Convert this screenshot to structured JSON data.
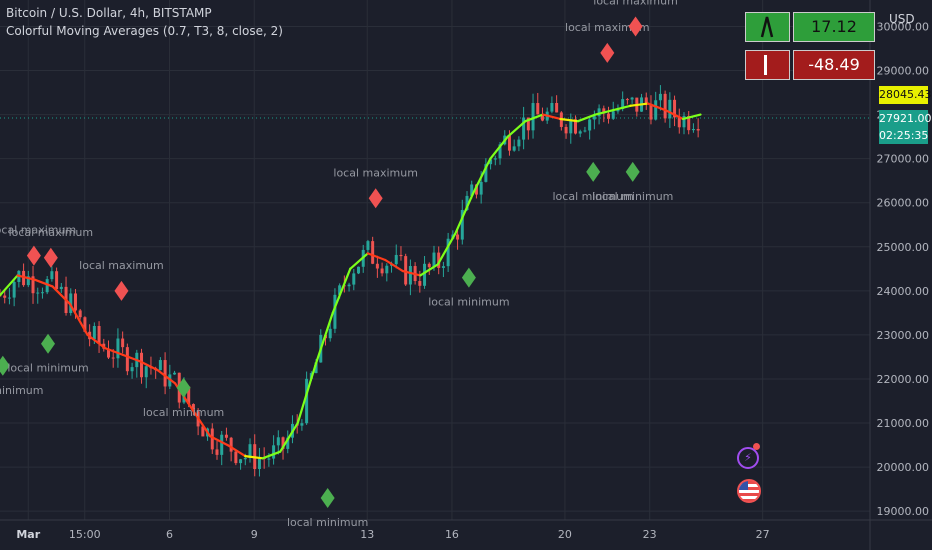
{
  "header": {
    "symbol_line": "Bitcoin / U.S. Dollar, 4h, BITSTAMP",
    "indicator_line": "Colorful Moving Averages (0.7, T3, 8, close, 2)"
  },
  "currency_label": "USD",
  "info_panel": {
    "row1_value": "17.12",
    "row2_value": "-48.49",
    "row1_color": "#2e9e3a",
    "row2_color": "#a31c1c"
  },
  "price_tags": {
    "last_price": "28045.43",
    "close_price": "27921.00",
    "countdown": "02:25:35",
    "last_color": "#e8f000",
    "close_color": "#1a9e8a"
  },
  "colors": {
    "background": "#1c1f2b",
    "candle_up": "#26a69a",
    "candle_down": "#ef5350",
    "ma_up": "#7cff1a",
    "ma_neutral": "#f0f000",
    "ma_down": "#ff3b1a",
    "marker_max": "#f05252",
    "marker_min": "#4caf50"
  },
  "chart_data": {
    "type": "candlestick",
    "y_ticks": [
      "19000.00",
      "20000.00",
      "21000.00",
      "22000.00",
      "23000.00",
      "24000.00",
      "25000.00",
      "26000.00",
      "27000.00",
      "28000.00",
      "29000.00",
      "30000.00"
    ],
    "ylim": [
      18800,
      30600
    ],
    "x_ticks": [
      "Mar",
      "15:00",
      "6",
      "9",
      "13",
      "16",
      "20",
      "23",
      "27"
    ],
    "x_tick_days": [
      1,
      3,
      6,
      9,
      13,
      16,
      20,
      23,
      27
    ],
    "xlim_days": [
      0,
      30.8
    ],
    "moving_average": [
      [
        0,
        23900
      ],
      [
        1,
        24350
      ],
      [
        2,
        24250
      ],
      [
        3,
        24100
      ],
      [
        4,
        23700
      ],
      [
        5,
        23000
      ],
      [
        6,
        22700
      ],
      [
        7,
        22550
      ],
      [
        8,
        22400
      ],
      [
        9,
        22200
      ],
      [
        10,
        21900
      ],
      [
        11,
        21300
      ],
      [
        12,
        20700
      ],
      [
        13,
        20500
      ],
      [
        14,
        20250
      ],
      [
        15,
        20200
      ],
      [
        16,
        20350
      ],
      [
        17,
        21000
      ],
      [
        18,
        22300
      ],
      [
        19,
        23500
      ],
      [
        20,
        24500
      ],
      [
        21,
        24850
      ],
      [
        22,
        24700
      ],
      [
        23,
        24450
      ],
      [
        24,
        24350
      ],
      [
        25,
        24600
      ],
      [
        26,
        25300
      ],
      [
        27,
        26200
      ],
      [
        28,
        27000
      ],
      [
        29,
        27500
      ],
      [
        30,
        27850
      ],
      [
        31,
        28000
      ],
      [
        32,
        27900
      ],
      [
        33,
        27850
      ],
      [
        34,
        28000
      ],
      [
        35,
        28100
      ],
      [
        36,
        28200
      ],
      [
        37,
        28250
      ],
      [
        38,
        28100
      ],
      [
        39,
        27900
      ],
      [
        40,
        28000
      ]
    ],
    "markers": [
      {
        "type": "max",
        "label": "local maximum",
        "x": 1.2,
        "y": 24800
      },
      {
        "type": "max",
        "label": "local maximum",
        "x": 1.8,
        "y": 24750
      },
      {
        "type": "max",
        "label": "local maximum",
        "x": 4.3,
        "y": 24000
      },
      {
        "type": "max",
        "label": "local maximum",
        "x": 13.3,
        "y": 26100
      },
      {
        "type": "max",
        "label": "local maximum",
        "x": 21.5,
        "y": 29400
      },
      {
        "type": "max",
        "label": "local maximum",
        "x": 22.5,
        "y": 30000
      },
      {
        "type": "min",
        "label": "local minimum",
        "x": 0.1,
        "y": 22300
      },
      {
        "type": "min",
        "label": "local minimum",
        "x": 1.7,
        "y": 22800
      },
      {
        "type": "min",
        "label": "local minimum",
        "x": 6.5,
        "y": 21800
      },
      {
        "type": "min",
        "label": "local minimum",
        "x": 11.6,
        "y": 19300
      },
      {
        "type": "min",
        "label": "local minimum",
        "x": 16.6,
        "y": 24300
      },
      {
        "type": "min",
        "label": "local minimum",
        "x": 21.0,
        "y": 26700
      },
      {
        "type": "min",
        "label": "local minimum",
        "x": 22.4,
        "y": 26700
      }
    ]
  }
}
